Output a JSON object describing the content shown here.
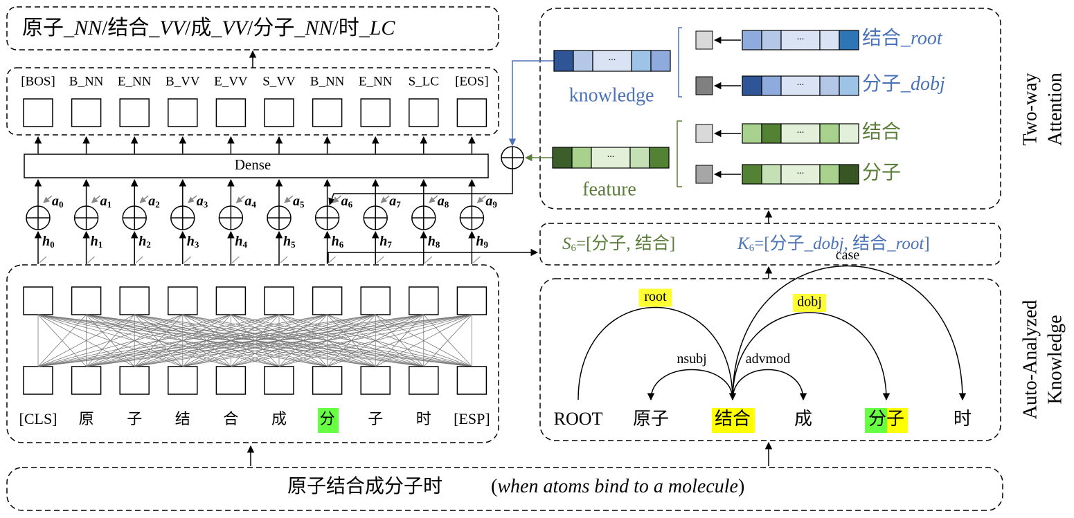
{
  "output": {
    "items": [
      {
        "word": "原子_",
        "tag": "NN"
      },
      {
        "word": "结合_",
        "tag": "VV"
      },
      {
        "word": "成_",
        "tag": "VV"
      },
      {
        "word": "分子_",
        "tag": "NN"
      },
      {
        "word": "时_",
        "tag": "LC"
      }
    ],
    "separator": "/"
  },
  "labels": [
    "[BOS]",
    "B_NN",
    "E_NN",
    "B_VV",
    "E_VV",
    "S_VV",
    "B_NN",
    "E_NN",
    "S_LC",
    "[EOS]"
  ],
  "dense": "Dense",
  "weights": {
    "a": "a",
    "h": "h",
    "indices": [
      "0",
      "1",
      "2",
      "3",
      "4",
      "5",
      "6",
      "7",
      "8",
      "9"
    ]
  },
  "tokens": [
    "[CLS]",
    "原",
    "子",
    "结",
    "合",
    "成",
    "分",
    "子",
    "时",
    "[ESP]"
  ],
  "sentence": {
    "chinese": "原子结合成分子时",
    "open": "(",
    "english": "when atoms bind to a molecule",
    "close": ")"
  },
  "attention": {
    "title": [
      "Two-way",
      "Attention"
    ],
    "knowledge": "knowledge",
    "feature": "feature",
    "ellipsis": "...",
    "knowledge_items": [
      {
        "word": "结合_",
        "rel": "root"
      },
      {
        "word": "分子_",
        "rel": "dobj"
      }
    ],
    "feature_items": [
      "结合",
      "分子"
    ]
  },
  "context": {
    "s": {
      "symbol": "S",
      "sub": "6",
      "text": "=[分子, 结合]"
    },
    "k": {
      "symbol": "K",
      "sub": "6",
      "parts": [
        "=[分子_",
        "dobj",
        ", 结合_",
        "root",
        "]"
      ]
    }
  },
  "dependency": {
    "title": [
      "Auto-Analyzed",
      "Knowledge"
    ],
    "words": [
      "ROOT",
      "原子",
      "结合",
      "成",
      "分子",
      "时"
    ],
    "arcs": [
      {
        "label": "root",
        "from": 0,
        "to": 2
      },
      {
        "label": "nsubj",
        "from": 2,
        "to": 1
      },
      {
        "label": "advmod",
        "from": 2,
        "to": 3
      },
      {
        "label": "dobj",
        "from": 2,
        "to": 4
      },
      {
        "label": "case",
        "from": 2,
        "to": 5
      }
    ]
  }
}
